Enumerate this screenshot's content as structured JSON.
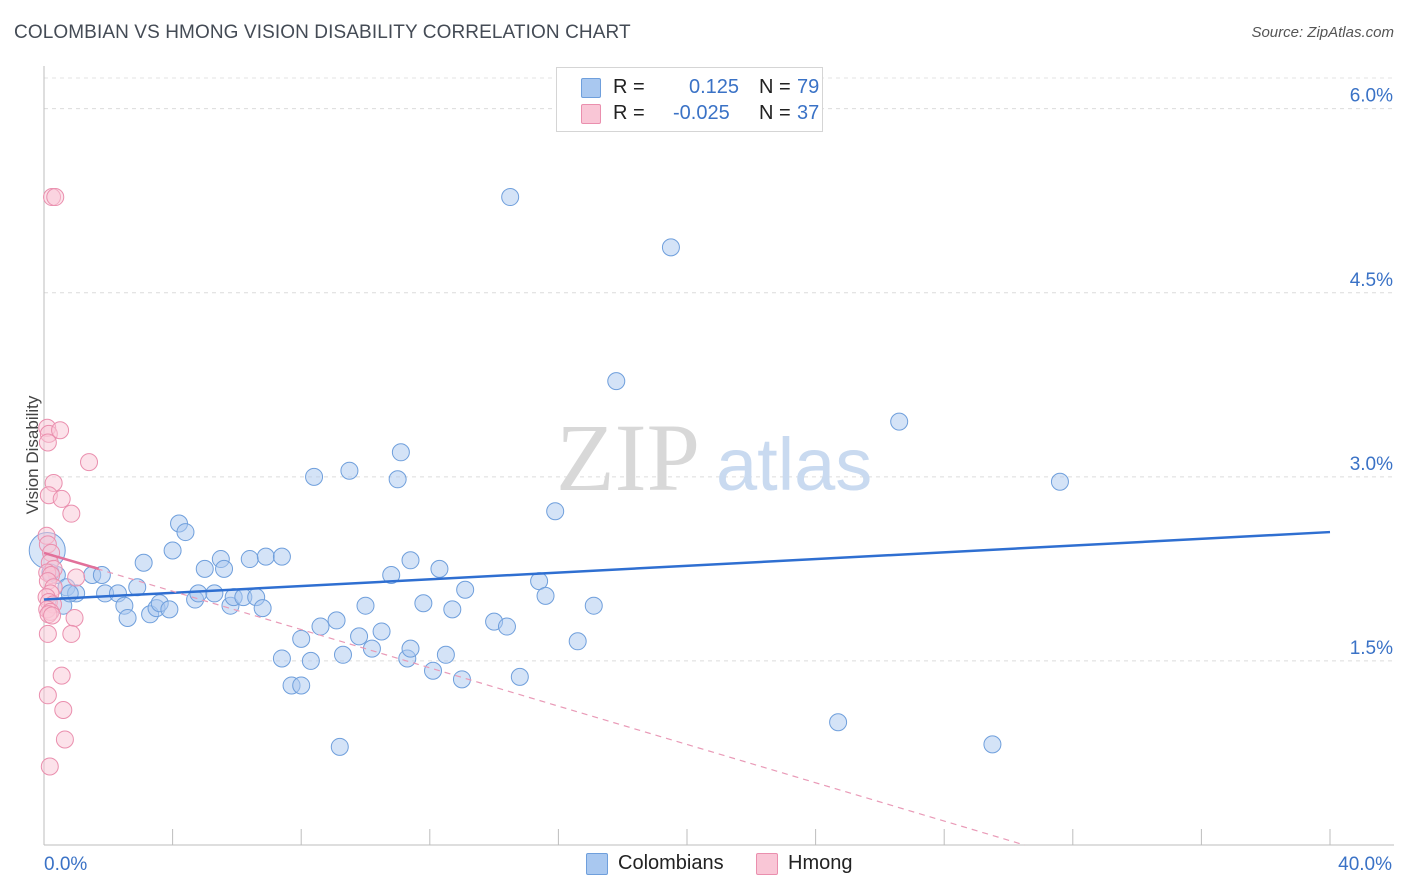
{
  "header": {
    "title": "COLOMBIAN VS HMONG VISION DISABILITY CORRELATION CHART",
    "source": "Source: ZipAtlas.com"
  },
  "legend": {
    "rows": [
      {
        "r_label": "R =",
        "r_value": "0.125",
        "n_label": "N =",
        "n_value": "79",
        "color": "#a9c8f0",
        "border": "#6f9fdc"
      },
      {
        "r_label": "R =",
        "r_value": "-0.025",
        "n_label": "N =",
        "n_value": "37",
        "color": "#f9c6d6",
        "border": "#ea8fae"
      }
    ]
  },
  "bottom_legend": {
    "items": [
      {
        "label": "Colombians",
        "color": "#a9c8f0",
        "border": "#6f9fdc"
      },
      {
        "label": "Hmong",
        "color": "#f9c6d6",
        "border": "#ea8fae"
      }
    ]
  },
  "watermark": {
    "left": "ZIP",
    "right": "atlas"
  },
  "chart_data": {
    "type": "scatter",
    "title": "COLOMBIAN VS HMONG VISION DISABILITY CORRELATION CHART",
    "xlabel": "",
    "ylabel": "Vision Disability",
    "xlim": [
      0,
      40
    ],
    "ylim": [
      0,
      6.25
    ],
    "x_tick_labels": [
      {
        "value": 0,
        "label": "0.0%"
      },
      {
        "value": 40,
        "label": "40.0%"
      }
    ],
    "x_minor_ticks": [
      4,
      8,
      12,
      16,
      20,
      24,
      28,
      32,
      36,
      40
    ],
    "y_ticks": [
      {
        "value": 1.5,
        "label": "1.5%"
      },
      {
        "value": 3.0,
        "label": "3.0%"
      },
      {
        "value": 4.5,
        "label": "4.5%"
      },
      {
        "value": 6.0,
        "label": "6.0%"
      }
    ],
    "grid": true,
    "series": [
      {
        "name": "Colombians",
        "color": "#a9c8f0",
        "stroke": "#6f9fdc",
        "r": 0.125,
        "n": 79,
        "trend": {
          "x": [
            0,
            40
          ],
          "y": [
            2.0,
            2.55
          ],
          "color": "#2f6fd1",
          "dashed": false
        },
        "points": [
          [
            0.1,
            2.4,
            "big"
          ],
          [
            0.4,
            2.2
          ],
          [
            0.7,
            2.1
          ],
          [
            0.6,
            1.95
          ],
          [
            1.0,
            2.05
          ],
          [
            1.5,
            2.2
          ],
          [
            1.9,
            2.05
          ],
          [
            2.3,
            2.05
          ],
          [
            1.8,
            2.2
          ],
          [
            2.5,
            1.95
          ],
          [
            2.6,
            1.85
          ],
          [
            2.9,
            2.1
          ],
          [
            3.1,
            2.3
          ],
          [
            3.3,
            1.88
          ],
          [
            3.5,
            1.93
          ],
          [
            3.6,
            1.97
          ],
          [
            3.9,
            1.92
          ],
          [
            4.0,
            2.4
          ],
          [
            4.2,
            2.62
          ],
          [
            4.4,
            2.55
          ],
          [
            4.7,
            2.0
          ],
          [
            4.8,
            2.05
          ],
          [
            5.0,
            2.25
          ],
          [
            5.3,
            2.05
          ],
          [
            5.5,
            2.33
          ],
          [
            5.6,
            2.25
          ],
          [
            5.8,
            1.95
          ],
          [
            5.9,
            2.02
          ],
          [
            6.2,
            2.02
          ],
          [
            6.4,
            2.33
          ],
          [
            6.6,
            2.02
          ],
          [
            6.8,
            1.93
          ],
          [
            6.9,
            2.35
          ],
          [
            7.4,
            2.35
          ],
          [
            7.4,
            1.52
          ],
          [
            7.7,
            1.3
          ],
          [
            8.0,
            1.3
          ],
          [
            8.0,
            1.68
          ],
          [
            8.3,
            1.5
          ],
          [
            8.4,
            3.0
          ],
          [
            8.6,
            1.78
          ],
          [
            9.1,
            1.83
          ],
          [
            9.2,
            0.8
          ],
          [
            9.3,
            1.55
          ],
          [
            9.5,
            3.05
          ],
          [
            9.8,
            1.7
          ],
          [
            10.0,
            1.95
          ],
          [
            10.2,
            1.6
          ],
          [
            10.5,
            1.74
          ],
          [
            10.8,
            2.2
          ],
          [
            11.0,
            2.98
          ],
          [
            11.1,
            3.2
          ],
          [
            11.3,
            1.52
          ],
          [
            11.4,
            1.6
          ],
          [
            11.4,
            2.32
          ],
          [
            11.8,
            1.97
          ],
          [
            12.1,
            1.42
          ],
          [
            12.3,
            2.25
          ],
          [
            12.5,
            1.55
          ],
          [
            12.7,
            1.92
          ],
          [
            13.0,
            1.35
          ],
          [
            13.1,
            2.08
          ],
          [
            14.0,
            1.82
          ],
          [
            14.4,
            1.78
          ],
          [
            14.5,
            5.28
          ],
          [
            14.8,
            1.37
          ],
          [
            15.4,
            2.15
          ],
          [
            15.6,
            2.03
          ],
          [
            15.9,
            2.72
          ],
          [
            16.6,
            1.66
          ],
          [
            17.1,
            1.95
          ],
          [
            17.8,
            3.78
          ],
          [
            19.5,
            4.87
          ],
          [
            24.7,
            1.0
          ],
          [
            26.6,
            3.45
          ],
          [
            29.5,
            0.82
          ],
          [
            31.6,
            2.96
          ],
          [
            0.8,
            2.05
          ],
          [
            0.2,
            2.22
          ]
        ]
      },
      {
        "name": "Hmong",
        "color": "#f9c6d6",
        "stroke": "#ea8fae",
        "r": -0.025,
        "n": 37,
        "trend": {
          "x": [
            0,
            1.7
          ],
          "y": [
            2.38,
            2.25
          ],
          "color": "#e2709a",
          "dashed": false
        },
        "trend_extended": {
          "x": [
            0,
            30.5
          ],
          "y": [
            2.38,
            0.0
          ],
          "color": "#e99ab7",
          "dashed": true
        },
        "points": [
          [
            0.25,
            5.28
          ],
          [
            0.35,
            5.28
          ],
          [
            0.1,
            3.4
          ],
          [
            0.15,
            3.35
          ],
          [
            0.12,
            3.28
          ],
          [
            0.5,
            3.38
          ],
          [
            1.4,
            3.12
          ],
          [
            0.3,
            2.95
          ],
          [
            0.15,
            2.85
          ],
          [
            0.55,
            2.82
          ],
          [
            0.85,
            2.7
          ],
          [
            0.08,
            2.52
          ],
          [
            0.12,
            2.45
          ],
          [
            0.22,
            2.38
          ],
          [
            0.18,
            2.3
          ],
          [
            0.3,
            2.25
          ],
          [
            0.1,
            2.22
          ],
          [
            0.22,
            2.2
          ],
          [
            0.12,
            2.15
          ],
          [
            0.3,
            2.1
          ],
          [
            0.2,
            2.05
          ],
          [
            0.08,
            2.02
          ],
          [
            0.15,
            1.98
          ],
          [
            0.28,
            1.96
          ],
          [
            0.1,
            1.92
          ],
          [
            0.2,
            1.9
          ],
          [
            0.14,
            1.88
          ],
          [
            0.25,
            1.87
          ],
          [
            0.95,
            1.85
          ],
          [
            0.12,
            1.72
          ],
          [
            0.85,
            1.72
          ],
          [
            0.55,
            1.38
          ],
          [
            0.12,
            1.22
          ],
          [
            0.6,
            1.1
          ],
          [
            0.65,
            0.86
          ],
          [
            0.18,
            0.64
          ],
          [
            1.0,
            2.18
          ]
        ]
      }
    ]
  }
}
